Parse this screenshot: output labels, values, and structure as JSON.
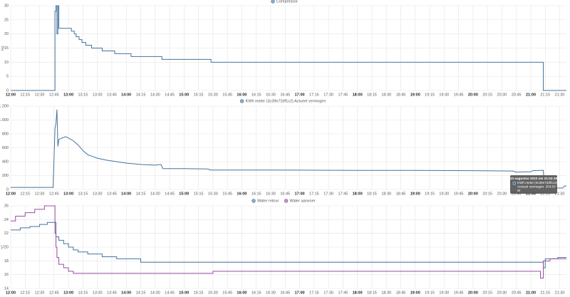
{
  "chart_data": [
    {
      "type": "line",
      "step": true,
      "y_label": "Hz",
      "grid": true,
      "xlim": [
        "12:00",
        "21:37"
      ],
      "xticks": [
        "12:00",
        "12:15",
        "12:30",
        "12:45",
        "13:00",
        "13:15",
        "13:30",
        "13:45",
        "14:00",
        "14:15",
        "14:30",
        "14:45",
        "15:00",
        "15:15",
        "15:30",
        "15:45",
        "16:00",
        "16:15",
        "16:30",
        "16:45",
        "17:00",
        "17:15",
        "17:30",
        "17:45",
        "18:00",
        "18:15",
        "18:30",
        "18:45",
        "19:00",
        "19:15",
        "19:30",
        "19:45",
        "20:00",
        "20:15",
        "20:30",
        "20:45",
        "21:00",
        "21:15",
        "21:30"
      ],
      "ylim": [
        0,
        30
      ],
      "yticks": [
        0,
        5,
        10,
        15,
        20,
        25,
        30
      ],
      "series": [
        {
          "name": "Compressor",
          "color": "#44739e",
          "x": [
            "12:00",
            "12:46",
            "12:47",
            "12:48",
            "12:49",
            "12:50",
            "13:03",
            "13:06",
            "13:08",
            "13:11",
            "13:14",
            "13:18",
            "13:24",
            "13:35",
            "13:48",
            "14:05",
            "14:37",
            "15:28",
            "21:13",
            "21:37"
          ],
          "values": [
            0,
            28,
            30,
            20,
            30,
            22,
            21,
            20,
            19,
            18,
            17,
            16,
            15,
            14,
            13,
            12,
            11,
            10,
            0,
            0
          ]
        }
      ]
    },
    {
      "type": "line",
      "step": false,
      "grid": true,
      "xlim": [
        "12:00",
        "21:37"
      ],
      "xticks": [
        "12:00",
        "12:15",
        "12:30",
        "12:45",
        "13:00",
        "13:15",
        "13:30",
        "13:45",
        "14:00",
        "14:15",
        "14:30",
        "14:45",
        "15:00",
        "15:15",
        "15:30",
        "15:45",
        "16:00",
        "16:15",
        "16:30",
        "16:45",
        "17:00",
        "17:15",
        "17:30",
        "17:45",
        "18:00",
        "18:15",
        "18:30",
        "18:45",
        "19:00",
        "19:15",
        "19:30",
        "19:45",
        "20:00",
        "20:15",
        "20:30",
        "20:45",
        "21:00",
        "21:15",
        "21:30"
      ],
      "ylim": [
        0,
        1200
      ],
      "yticks": [
        0,
        200,
        400,
        600,
        800,
        {
          "value": 1000,
          "label": "1.000"
        },
        {
          "value": 1200,
          "label": "1.200"
        }
      ],
      "series": [
        {
          "name": "KWh meter (3c39e72df1c2) Actueel vermogen",
          "color": "#44739e",
          "x": [
            "12:00",
            "12:44",
            "12:46",
            "12:47",
            "12:48",
            "12:49",
            "12:50",
            "12:53",
            "12:57",
            "13:00",
            "13:05",
            "13:10",
            "13:15",
            "13:20",
            "13:30",
            "13:40",
            "13:50",
            "14:00",
            "14:15",
            "14:30",
            "14:36",
            "14:38",
            "15:00",
            "15:25",
            "15:27",
            "16:00",
            "17:00",
            "18:00",
            "19:00",
            "20:00",
            "20:42",
            "20:44",
            "21:00",
            "21:02",
            "21:13",
            "21:14",
            "21:33",
            "21:35",
            "21:37"
          ],
          "values": [
            30,
            30,
            880,
            950,
            1150,
            620,
            720,
            740,
            760,
            740,
            700,
            640,
            560,
            500,
            450,
            420,
            400,
            380,
            360,
            350,
            360,
            300,
            300,
            295,
            280,
            280,
            278,
            275,
            275,
            270,
            265,
            250,
            255,
            270,
            275,
            20,
            20,
            50,
            50
          ]
        }
      ],
      "tooltip": [
        "10 augustus 2023 om 21:02:18",
        "KWh meter (3c39e72df1c2)",
        "Actueel vermogen: 254,53",
        "W"
      ]
    },
    {
      "type": "line",
      "step": true,
      "y_label": "°C",
      "grid": true,
      "xlim": [
        "12:00",
        "21:37"
      ],
      "xticks": [
        "12:00",
        "12:15",
        "12:30",
        "12:45",
        "13:00",
        "13:15",
        "13:30",
        "13:45",
        "14:00",
        "14:15",
        "14:30",
        "14:45",
        "15:00",
        "15:15",
        "15:30",
        "15:45",
        "16:00",
        "16:15",
        "16:30",
        "16:45",
        "17:00",
        "17:15",
        "17:30",
        "17:45",
        "18:00",
        "18:15",
        "18:30",
        "18:45",
        "19:00",
        "19:15",
        "19:30",
        "19:45",
        "20:00",
        "20:15",
        "20:30",
        "20:45",
        "21:00",
        "21:15",
        "21:30"
      ],
      "ylim": [
        14,
        26
      ],
      "yticks": [
        14,
        16,
        18,
        20,
        22,
        24,
        26
      ],
      "series": [
        {
          "name": "Water retour",
          "color": "#44739e",
          "x": [
            "12:00",
            "12:10",
            "12:20",
            "12:30",
            "12:38",
            "12:47",
            "12:50",
            "12:55",
            "13:00",
            "13:05",
            "13:10",
            "13:20",
            "13:35",
            "13:50",
            "14:15",
            "21:13",
            "21:15",
            "21:28",
            "21:37"
          ],
          "values": [
            22.5,
            22.8,
            23,
            23.3,
            23.6,
            21.5,
            21,
            20.5,
            20,
            19.6,
            19.3,
            19,
            18.6,
            18.3,
            17.8,
            17,
            18.3,
            18.5,
            18.5
          ]
        },
        {
          "name": "Water aanvoer",
          "color": "#984ea3",
          "x": [
            "12:00",
            "12:05",
            "12:15",
            "12:25",
            "12:35",
            "12:46",
            "12:47",
            "12:48",
            "12:50",
            "12:55",
            "13:00",
            "13:05",
            "15:30",
            "21:10",
            "21:13",
            "21:20",
            "21:37"
          ],
          "values": [
            23.8,
            24.5,
            25,
            25.5,
            26,
            22,
            20,
            18.5,
            17.5,
            17,
            16.5,
            16.2,
            16.5,
            15.5,
            18,
            18.3,
            18.3
          ]
        }
      ]
    }
  ]
}
